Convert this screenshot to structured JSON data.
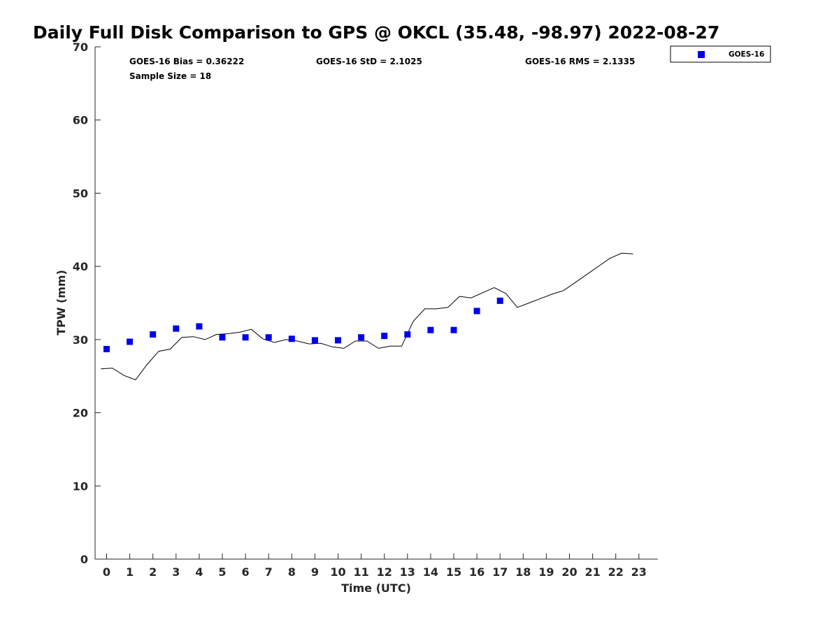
{
  "chart_data": {
    "type": "scatter",
    "title": "Daily Full Disk Comparison to GPS @ OKCL (35.48, -98.97) 2022-08-27",
    "xlabel": "Time (UTC)",
    "ylabel": "TPW (mm)",
    "xlim": [
      -0.5,
      23.8
    ],
    "ylim": [
      0,
      70
    ],
    "x_ticks": [
      "0",
      "1",
      "2",
      "3",
      "4",
      "5",
      "6",
      "7",
      "8",
      "9",
      "10",
      "11",
      "12",
      "13",
      "14",
      "15",
      "16",
      "17",
      "18",
      "19",
      "20",
      "21",
      "22",
      "23"
    ],
    "y_ticks": [
      "0",
      "10",
      "20",
      "30",
      "40",
      "50",
      "60",
      "70"
    ],
    "grid": false,
    "legend_position": "top-right, outside plot",
    "stats": [
      "GOES-16 Bias = 0.36222",
      "GOES-16 StD = 2.1025",
      "GOES-16 RMS = 2.1335",
      "Sample Size = 18"
    ],
    "series": [
      {
        "name": "GOES-16",
        "type": "scatter",
        "color": "#0000ee",
        "marker": "square",
        "x": [
          0,
          1,
          2,
          3,
          4,
          5,
          6,
          7,
          8,
          9,
          10,
          11,
          12,
          13,
          14,
          15,
          16,
          17
        ],
        "y": [
          28.7,
          29.7,
          30.7,
          31.5,
          31.8,
          30.3,
          30.3,
          30.3,
          30.1,
          29.9,
          29.9,
          30.3,
          30.5,
          30.7,
          31.3,
          31.3,
          33.9,
          35.3
        ]
      },
      {
        "type": "line",
        "color": "#000000",
        "x": [
          -0.25,
          0.25,
          0.75,
          1.25,
          1.75,
          2.25,
          2.75,
          3.25,
          3.75,
          4.25,
          4.75,
          5.25,
          5.75,
          6.25,
          6.75,
          7.25,
          7.75,
          8.25,
          8.75,
          9.25,
          9.75,
          10.25,
          10.75,
          11.25,
          11.75,
          12.25,
          12.75,
          13.25,
          13.75,
          14.25,
          14.75,
          15.25,
          15.75,
          16.25,
          16.75,
          17.25,
          17.75,
          18.25,
          18.75,
          19.25,
          19.75,
          20.25,
          20.75,
          21.25,
          21.75,
          22.25,
          22.75
        ],
        "y": [
          26.0,
          26.1,
          25.1,
          24.5,
          26.6,
          28.4,
          28.7,
          30.3,
          30.4,
          30.0,
          30.7,
          30.8,
          31.0,
          31.4,
          30.1,
          29.6,
          30.0,
          29.8,
          29.4,
          29.5,
          29.0,
          28.8,
          29.8,
          29.8,
          28.8,
          29.1,
          29.1,
          32.5,
          34.2,
          34.2,
          34.4,
          35.9,
          35.7,
          36.4,
          37.1,
          36.3,
          34.4,
          35.0,
          35.6,
          36.2,
          36.7,
          37.8,
          38.9,
          40.0,
          41.1,
          41.8,
          41.7
        ]
      }
    ]
  }
}
